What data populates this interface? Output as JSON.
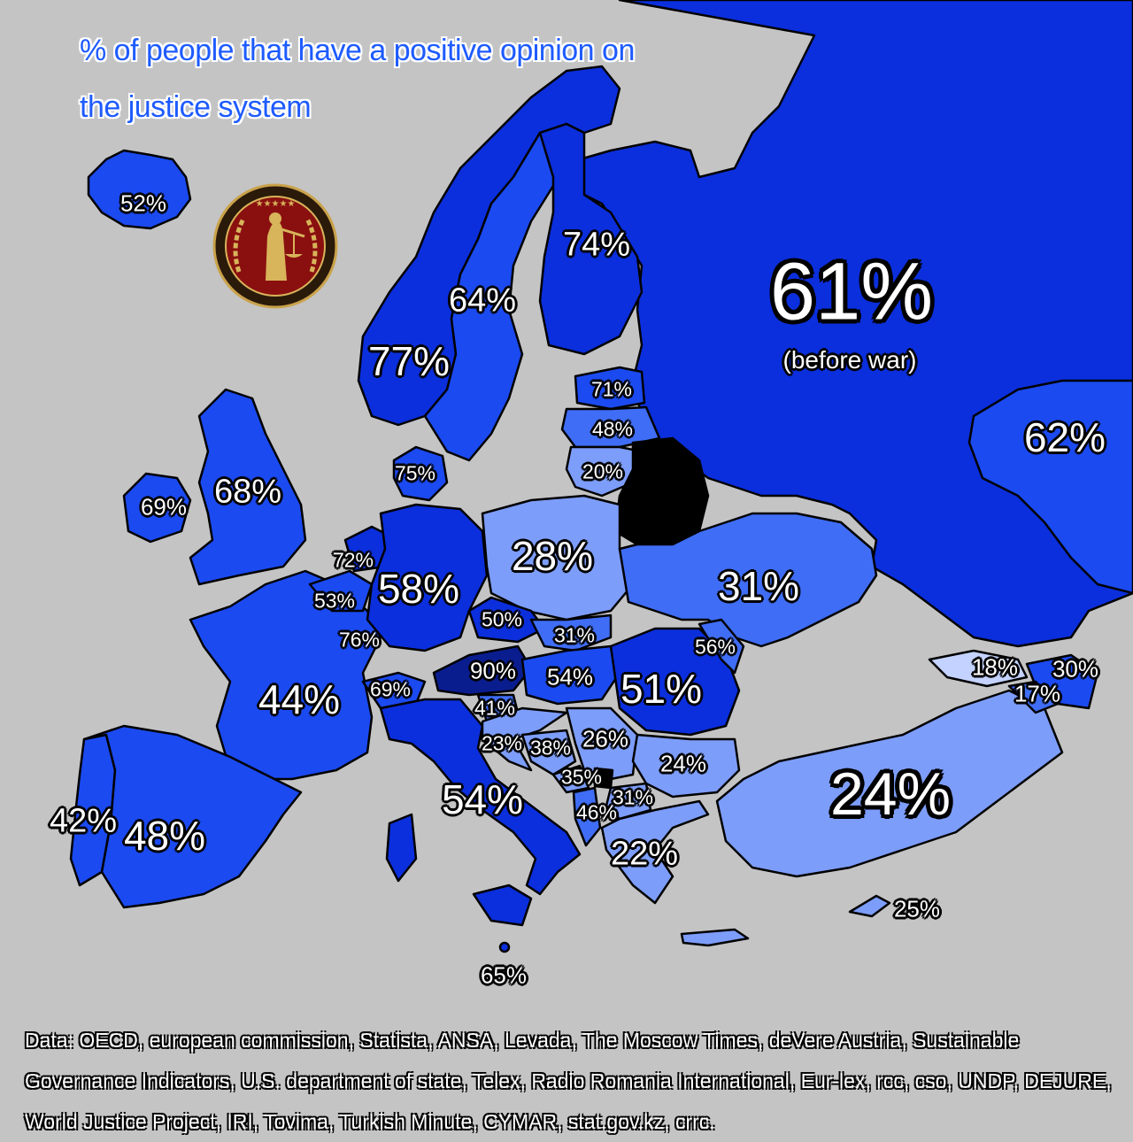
{
  "title": {
    "line1": "% of people that have a positive opinion on",
    "line2": "the justice system"
  },
  "colors": {
    "background": "#c4c4c4",
    "very_high": "#0a1d8f",
    "high": "#0b2fdc",
    "mid_high": "#1b4af0",
    "mid": "#3f6df5",
    "low": "#7d9dfa",
    "very_low": "#c3d2ff",
    "no_data": "#000000"
  },
  "labels": {
    "iceland": "52%",
    "norway": "77%",
    "sweden": "64%",
    "finland": "74%",
    "russia": "61%",
    "russia_note": "(before war)",
    "kazakhstan": "62%",
    "estonia": "71%",
    "latvia": "48%",
    "lithuania": "20%",
    "denmark": "75%",
    "ireland": "69%",
    "uk": "68%",
    "netherlands": "72%",
    "belgium": "53%",
    "luxembourg": "76%",
    "germany": "58%",
    "poland": "28%",
    "ukraine": "31%",
    "czechia": "50%",
    "slovakia": "31%",
    "moldova": "56%",
    "austria": "90%",
    "hungary": "54%",
    "romania": "51%",
    "switzerland": "69%",
    "france": "44%",
    "slovenia": "41%",
    "croatia": "23%",
    "bosnia": "38%",
    "serbia": "26%",
    "montenegro": "35%",
    "kosovo": "31%",
    "albania": "46%",
    "bulgaria": "24%",
    "north_macedonia_greece": "22%",
    "italy": "54%",
    "malta": "65%",
    "turkey": "24%",
    "cyprus": "25%",
    "georgia": "18%",
    "azerbaijan": "30%",
    "armenia": "17%",
    "portugal": "42%",
    "spain": "48%"
  },
  "sources": "Data: OECD, european commission, Statista, ANSA, Levada, The Moscow Times, deVere Austria, Sustainable Governance Indicators, U.S. department of state, Telex, Radio Romania International, Eur-lex, rcc, cso, UNDP, DEJURE, World Justice Project, IRI, Tovima, Turkish Minute, CYMAR, stat.gov.kz, crrc.",
  "emblem_icon": "lady-justice-emblem-icon"
}
